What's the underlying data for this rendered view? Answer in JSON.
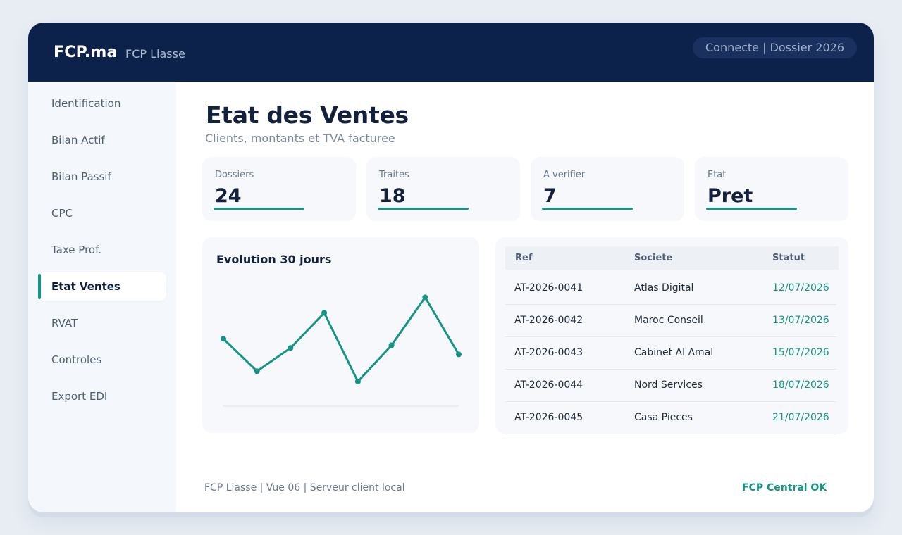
{
  "header": {
    "logo": "FCP.ma",
    "app_name": "FCP Liasse",
    "status": "Connecte | Dossier 2026"
  },
  "sidebar": {
    "items": [
      {
        "label": "Identification",
        "active": false
      },
      {
        "label": "Bilan Actif",
        "active": false
      },
      {
        "label": "Bilan Passif",
        "active": false
      },
      {
        "label": "CPC",
        "active": false
      },
      {
        "label": "Taxe Prof.",
        "active": false
      },
      {
        "label": "Etat Ventes",
        "active": true
      },
      {
        "label": "RVAT",
        "active": false
      },
      {
        "label": "Controles",
        "active": false
      },
      {
        "label": "Export EDI",
        "active": false
      }
    ]
  },
  "main": {
    "title": "Etat des Ventes",
    "subtitle": "Clients, montants et TVA facturee",
    "kpis": [
      {
        "label": "Dossiers",
        "value": "24"
      },
      {
        "label": "Traites",
        "value": "18"
      },
      {
        "label": "A verifier",
        "value": "7"
      },
      {
        "label": "Etat",
        "value": "Pret"
      }
    ]
  },
  "chart_data": {
    "type": "line",
    "title": "Evolution 30 jours",
    "x": [
      1,
      2,
      3,
      4,
      5,
      6,
      7,
      8
    ],
    "values": [
      52,
      27,
      45,
      72,
      19,
      47,
      84,
      40
    ],
    "ylim": [
      0,
      100
    ],
    "grid": false,
    "legend": "none",
    "line_color": "#149484"
  },
  "table": {
    "headers": [
      "Ref",
      "Societe",
      "Statut"
    ],
    "rows": [
      [
        "AT-2026-0041",
        "Atlas Digital",
        "12/07/2026"
      ],
      [
        "AT-2026-0042",
        "Maroc Conseil",
        "13/07/2026"
      ],
      [
        "AT-2026-0043",
        "Cabinet Al Amal",
        "15/07/2026"
      ],
      [
        "AT-2026-0044",
        "Nord Services",
        "18/07/2026"
      ],
      [
        "AT-2026-0045",
        "Casa Pieces",
        "21/07/2026"
      ]
    ]
  },
  "footer": {
    "left": "FCP Liasse | Vue 06 | Serveur client local",
    "right": "FCP Central OK"
  },
  "colors": {
    "header_bg": "#0d224b",
    "accent": "#149484",
    "sidebar_bg": "#f4f7fb",
    "card_bg": "#f6f8fc"
  }
}
